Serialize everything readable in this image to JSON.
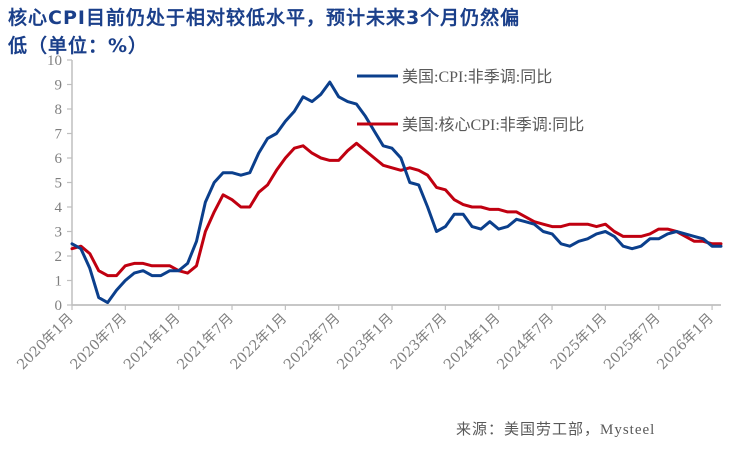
{
  "title_line1": "核心CPI目前仍处于相对较低水平，预计未来3个月仍然偏",
  "title_line2": "低（单位：%）",
  "source": "来源：美国劳工部，Mysteel",
  "colors": {
    "cpi": "#0b3f8c",
    "core": "#c00010",
    "axis": "#bfbfbf",
    "tick_text": "#7f7f7f",
    "title": "#1a3f8a"
  },
  "chart_data": {
    "type": "line",
    "title": "核心CPI目前仍处于相对较低水平，预计未来3个月仍然偏低（单位：%）",
    "xlabel": "",
    "ylabel": "%",
    "ylim": [
      0,
      10
    ],
    "yticks": [
      0,
      1,
      2,
      3,
      4,
      5,
      6,
      7,
      8,
      9,
      10
    ],
    "xtick_labels": [
      "2020年1月",
      "2020年7月",
      "2021年1月",
      "2021年7月",
      "2022年1月",
      "2022年7月",
      "2023年1月",
      "2023年7月",
      "2024年1月",
      "2024年7月",
      "2025年1月",
      "2025年7月",
      "2026年1月"
    ],
    "grid": false,
    "legend_position": "top-right-inside",
    "x_start": "2020-01",
    "x_end": "2026-02",
    "series": [
      {
        "name": "美国:CPI:非季调:同比",
        "color": "#0b3f8c",
        "values": [
          2.5,
          2.3,
          1.5,
          0.3,
          0.1,
          0.6,
          1.0,
          1.3,
          1.4,
          1.2,
          1.2,
          1.4,
          1.4,
          1.7,
          2.6,
          4.2,
          5.0,
          5.4,
          5.4,
          5.3,
          5.4,
          6.2,
          6.8,
          7.0,
          7.5,
          7.9,
          8.5,
          8.3,
          8.6,
          9.1,
          8.5,
          8.3,
          8.2,
          7.7,
          7.1,
          6.5,
          6.4,
          6.0,
          5.0,
          4.9,
          4.0,
          3.0,
          3.2,
          3.7,
          3.7,
          3.2,
          3.1,
          3.4,
          3.1,
          3.2,
          3.5,
          3.4,
          3.3,
          3.0,
          2.9,
          2.5,
          2.4,
          2.6,
          2.7,
          2.9,
          3.0,
          2.8,
          2.4,
          2.3,
          2.4,
          2.7,
          2.7,
          2.9,
          3.0,
          2.9,
          2.8,
          2.7,
          2.4,
          2.4
        ]
      },
      {
        "name": "美国:核心CPI:非季调:同比",
        "color": "#c00010",
        "values": [
          2.3,
          2.4,
          2.1,
          1.4,
          1.2,
          1.2,
          1.6,
          1.7,
          1.7,
          1.6,
          1.6,
          1.6,
          1.4,
          1.3,
          1.6,
          3.0,
          3.8,
          4.5,
          4.3,
          4.0,
          4.0,
          4.6,
          4.9,
          5.5,
          6.0,
          6.4,
          6.5,
          6.2,
          6.0,
          5.9,
          5.9,
          6.3,
          6.6,
          6.3,
          6.0,
          5.7,
          5.6,
          5.5,
          5.6,
          5.5,
          5.3,
          4.8,
          4.7,
          4.3,
          4.1,
          4.0,
          4.0,
          3.9,
          3.9,
          3.8,
          3.8,
          3.6,
          3.4,
          3.3,
          3.2,
          3.2,
          3.3,
          3.3,
          3.3,
          3.2,
          3.3,
          3.0,
          2.8,
          2.8,
          2.8,
          2.9,
          3.1,
          3.1,
          3.0,
          2.8,
          2.6,
          2.6,
          2.5,
          2.5
        ]
      }
    ]
  }
}
